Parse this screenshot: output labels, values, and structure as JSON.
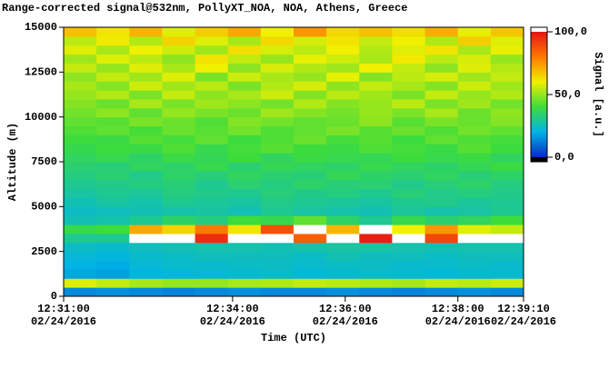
{
  "chart_data": {
    "type": "heatmap",
    "title": "Range-corrected signal@532nm, PollyXT_NOA, NOA, Athens, Greece",
    "x_label": "Time (UTC)",
    "y_label": "Altitude (m)",
    "colorbar_label": "Signal [a.u.]",
    "xlim": [
      "12:31:00",
      "12:39:10"
    ],
    "xticks": [
      {
        "value": "12:31:00",
        "label": [
          "12:31:00",
          "02/24/2016"
        ]
      },
      {
        "value": "12:34:00",
        "label": [
          "12:34:00",
          "02/24/2016"
        ]
      },
      {
        "value": "12:36:00",
        "label": [
          "12:36:00",
          "02/24/2016"
        ]
      },
      {
        "value": "12:38:00",
        "label": [
          "12:38:00",
          "02/24/2016"
        ]
      },
      {
        "value": "12:39:10",
        "label": [
          "12:39:10",
          "02/24/2016"
        ]
      }
    ],
    "ylim": [
      0,
      15000
    ],
    "yticks": [
      0,
      2500,
      5000,
      7500,
      10000,
      12500,
      15000
    ],
    "zlim": [
      0,
      100
    ],
    "zticks": [
      {
        "value": 0,
        "label": "0,0"
      },
      {
        "value": 50,
        "label": "50,0"
      },
      {
        "value": 100,
        "label": "100,0"
      }
    ],
    "colormap": [
      "#0a28c8",
      "#00b4e6",
      "#3cdc3c",
      "#f0f000",
      "#ff7800",
      "#e61414"
    ],
    "over_color": "#ffffff",
    "under_color": "#000000",
    "x": [
      "12:31:00",
      "12:31:35",
      "12:32:10",
      "12:32:45",
      "12:33:20",
      "12:33:55",
      "12:34:30",
      "12:35:05",
      "12:35:40",
      "12:36:15",
      "12:36:50",
      "12:37:25",
      "12:38:00",
      "12:38:35"
    ],
    "y": [
      0,
      500,
      1000,
      1500,
      2000,
      2500,
      3000,
      3500,
      4000,
      4500,
      5000,
      5500,
      6000,
      6500,
      7000,
      7500,
      8000,
      8500,
      9000,
      9500,
      10000,
      10500,
      11000,
      11500,
      12000,
      12500,
      13000,
      13500,
      14000,
      14500
    ],
    "values": [
      [
        14,
        15,
        14,
        13,
        14,
        15,
        14,
        14,
        15,
        14,
        13,
        14,
        15,
        14
      ],
      [
        58,
        55,
        52,
        50,
        50,
        52,
        53,
        55,
        54,
        53,
        52,
        55,
        54,
        56
      ],
      [
        18,
        17,
        20,
        21,
        22,
        22,
        23,
        21,
        22,
        23,
        22,
        21,
        22,
        22
      ],
      [
        20,
        19,
        22,
        23,
        23,
        24,
        24,
        23,
        24,
        24,
        23,
        23,
        24,
        23
      ],
      [
        22,
        21,
        23,
        24,
        25,
        25,
        25,
        24,
        26,
        25,
        25,
        24,
        25,
        25
      ],
      [
        24,
        23,
        25,
        26,
        27,
        27,
        26,
        27,
        28,
        28,
        27,
        26,
        27,
        27
      ],
      [
        30,
        30,
        110,
        108,
        95,
        104,
        112,
        85,
        120,
        98,
        105,
        90,
        110,
        108
      ],
      [
        38,
        40,
        72,
        65,
        80,
        62,
        88,
        105,
        70,
        112,
        60,
        75,
        58,
        55
      ],
      [
        26,
        27,
        30,
        35,
        32,
        40,
        38,
        44,
        35,
        30,
        38,
        34,
        36,
        40
      ],
      [
        24,
        25,
        26,
        27,
        28,
        26,
        30,
        28,
        27,
        26,
        29,
        27,
        28,
        30
      ],
      [
        26,
        28,
        27,
        30,
        29,
        28,
        31,
        30,
        29,
        28,
        30,
        31,
        29,
        30
      ],
      [
        28,
        30,
        29,
        32,
        31,
        30,
        33,
        31,
        32,
        30,
        33,
        31,
        32,
        31
      ],
      [
        30,
        31,
        32,
        33,
        30,
        34,
        32,
        35,
        33,
        34,
        31,
        33,
        35,
        32
      ],
      [
        32,
        34,
        31,
        35,
        33,
        36,
        34,
        33,
        37,
        35,
        34,
        36,
        33,
        35
      ],
      [
        34,
        33,
        36,
        35,
        38,
        34,
        37,
        36,
        35,
        38,
        36,
        35,
        37,
        39
      ],
      [
        36,
        38,
        35,
        39,
        37,
        40,
        36,
        39,
        38,
        37,
        40,
        38,
        39,
        36
      ],
      [
        38,
        40,
        39,
        42,
        38,
        41,
        43,
        40,
        39,
        42,
        41,
        39,
        43,
        40
      ],
      [
        40,
        39,
        43,
        41,
        44,
        40,
        42,
        45,
        41,
        43,
        40,
        44,
        42,
        41
      ],
      [
        42,
        44,
        41,
        45,
        43,
        46,
        42,
        44,
        47,
        43,
        45,
        42,
        46,
        44
      ],
      [
        44,
        43,
        47,
        45,
        42,
        48,
        46,
        44,
        45,
        49,
        43,
        47,
        45,
        48
      ],
      [
        46,
        49,
        44,
        50,
        47,
        45,
        51,
        48,
        46,
        50,
        47,
        52,
        45,
        49
      ],
      [
        48,
        45,
        52,
        47,
        51,
        49,
        46,
        53,
        48,
        50,
        54,
        47,
        51,
        46
      ],
      [
        50,
        53,
        47,
        55,
        49,
        52,
        56,
        48,
        54,
        51,
        47,
        55,
        50,
        53
      ],
      [
        52,
        48,
        56,
        51,
        54,
        47,
        53,
        57,
        49,
        55,
        52,
        48,
        56,
        51
      ],
      [
        49,
        55,
        51,
        58,
        47,
        56,
        52,
        50,
        59,
        48,
        54,
        57,
        51,
        55
      ],
      [
        55,
        50,
        58,
        52,
        60,
        49,
        57,
        53,
        51,
        60,
        55,
        49,
        58,
        53
      ],
      [
        51,
        58,
        54,
        49,
        62,
        55,
        50,
        59,
        56,
        52,
        61,
        54,
        57,
        50
      ],
      [
        58,
        52,
        60,
        56,
        51,
        63,
        57,
        54,
        60,
        53,
        58,
        62,
        52,
        59
      ],
      [
        54,
        61,
        53,
        65,
        58,
        52,
        64,
        57,
        62,
        55,
        60,
        53,
        66,
        58
      ],
      [
        68,
        62,
        70,
        58,
        66,
        72,
        60,
        75,
        64,
        68,
        63,
        71,
        59,
        67
      ]
    ]
  }
}
